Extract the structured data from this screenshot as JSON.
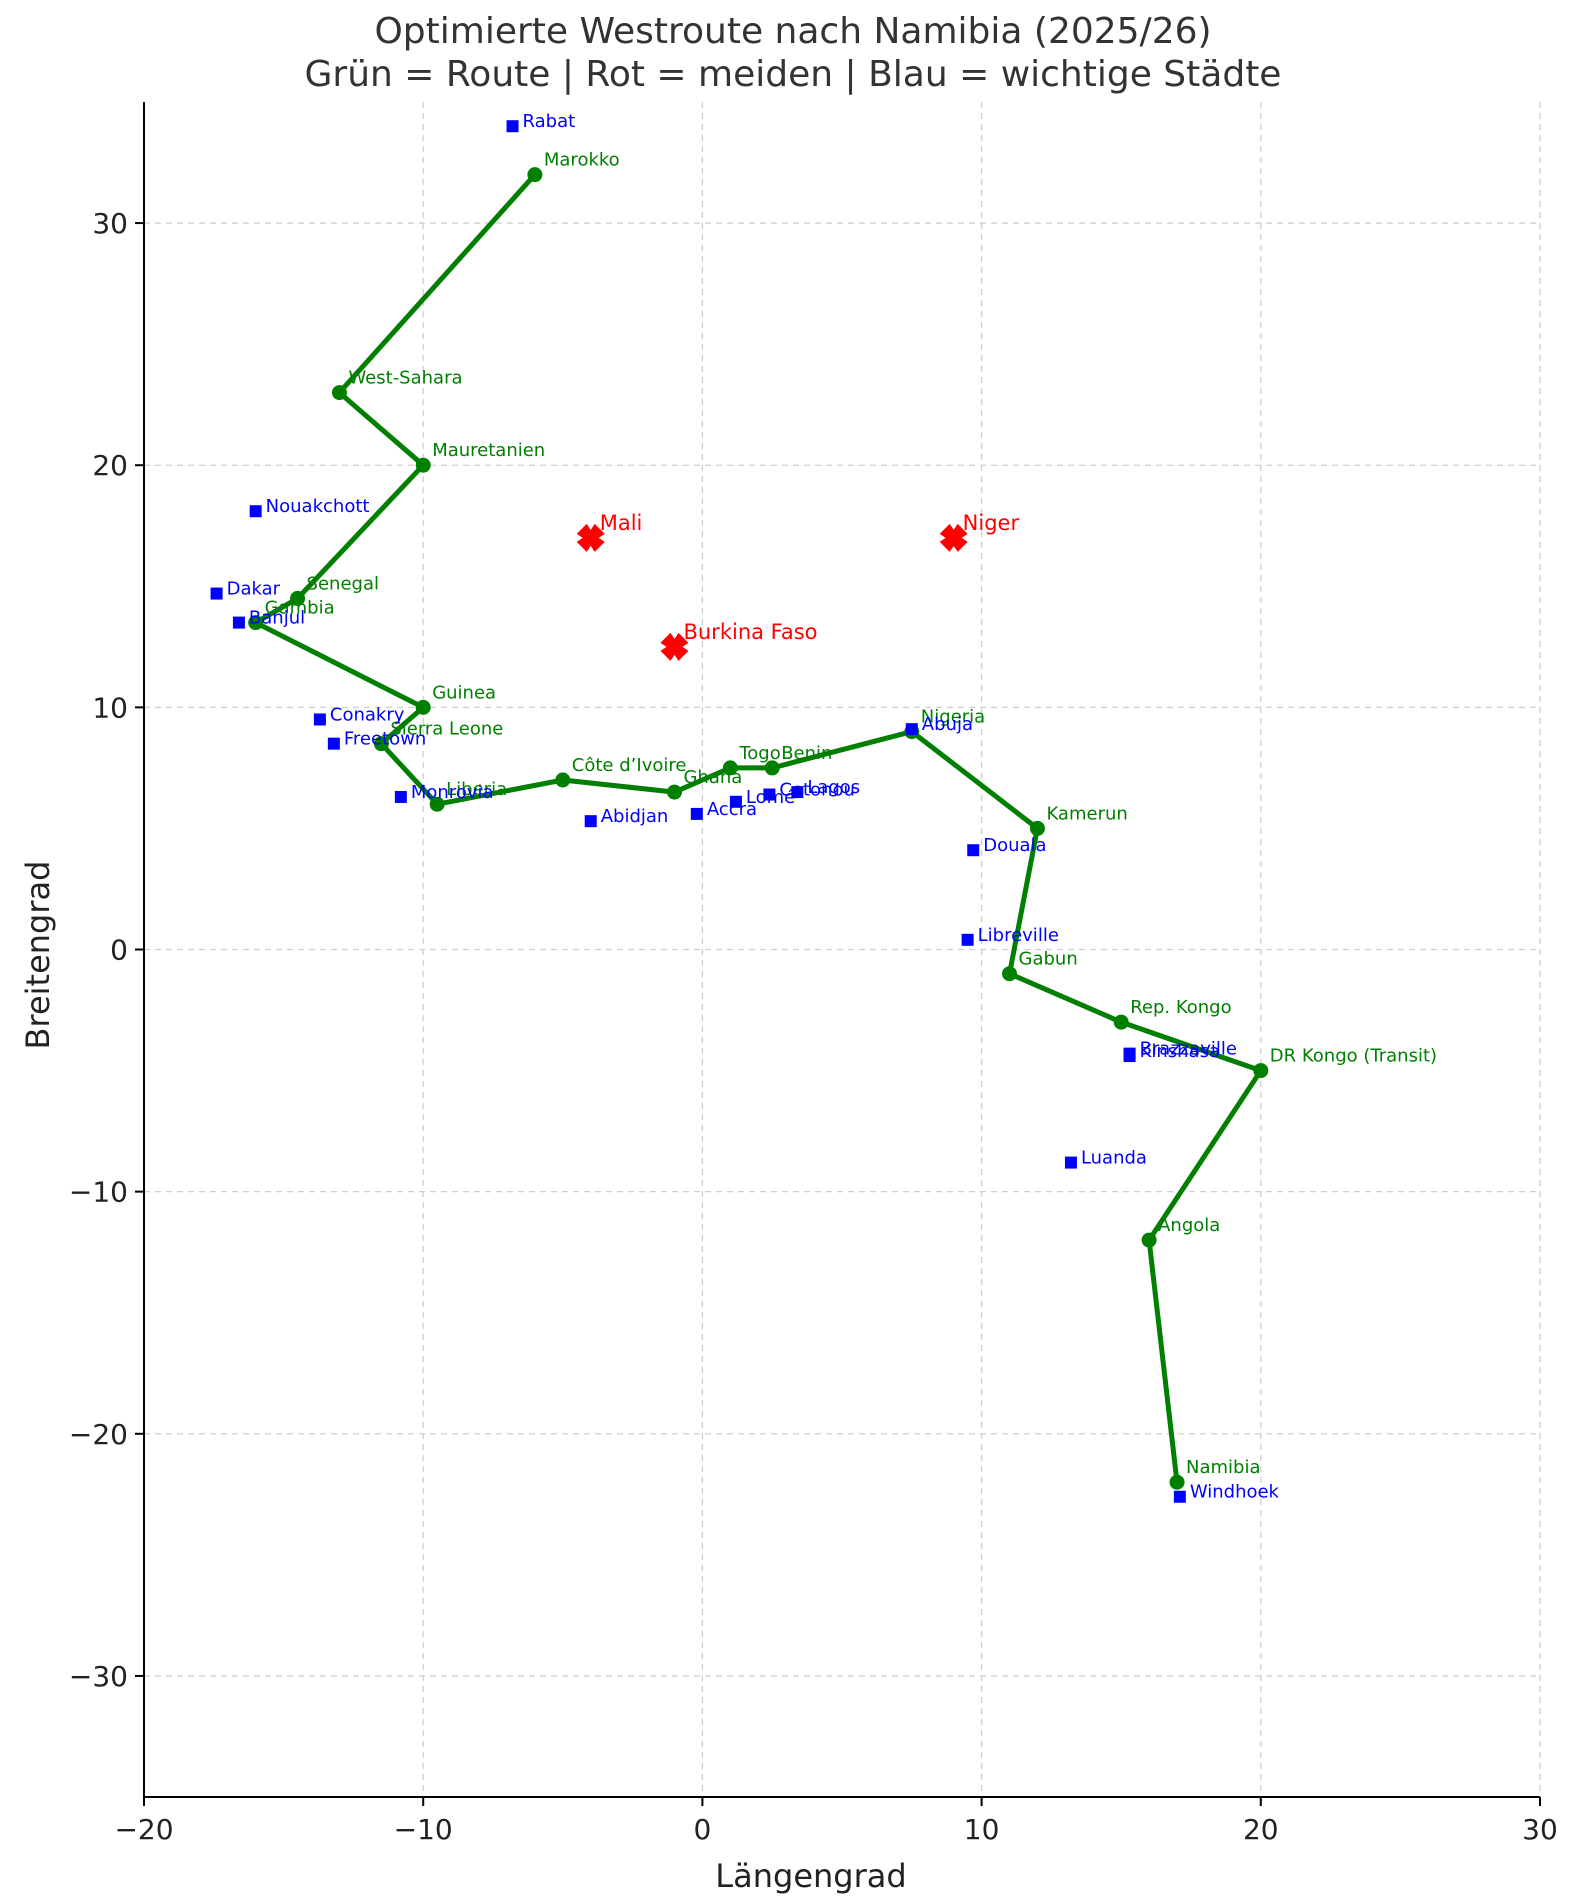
{
  "chart_data": {
    "type": "scatter",
    "title": "Optimierte Westroute nach Namibia (2025/26)",
    "subtitle": "Grün = Route | Rot = meiden | Blau = wichtige Städte",
    "xlabel": "Längengrad",
    "ylabel": "Breitengrad",
    "xlim": [
      -20,
      30
    ],
    "ylim": [
      -35,
      35
    ],
    "xticks": [
      -20,
      -10,
      0,
      10,
      20,
      30
    ],
    "yticks": [
      -30,
      -20,
      -10,
      0,
      10,
      20,
      30
    ],
    "xtick_labels": [
      "−20",
      "−10",
      "0",
      "10",
      "20",
      "30"
    ],
    "ytick_labels": [
      "−30",
      "−20",
      "−10",
      "0",
      "10",
      "20",
      "30"
    ],
    "grid": true,
    "colors": {
      "route": "#008000",
      "avoid": "#ff0000",
      "cities": "#0000ff"
    },
    "route": [
      {
        "name": "Marokko",
        "x": -6,
        "y": 32
      },
      {
        "name": "West-Sahara",
        "x": -13,
        "y": 23
      },
      {
        "name": "Mauretanien",
        "x": -10,
        "y": 20
      },
      {
        "name": "Senegal",
        "x": -14.5,
        "y": 14.5
      },
      {
        "name": "Gambia",
        "x": -16,
        "y": 13.5
      },
      {
        "name": "Guinea",
        "x": -10,
        "y": 10
      },
      {
        "name": "Sierra Leone",
        "x": -11.5,
        "y": 8.5
      },
      {
        "name": "Liberia",
        "x": -9.5,
        "y": 6
      },
      {
        "name": "Côte d’Ivoire",
        "x": -5,
        "y": 7
      },
      {
        "name": "Ghana",
        "x": -1,
        "y": 6.5
      },
      {
        "name": "Togo",
        "x": 1,
        "y": 7.5
      },
      {
        "name": "Benin",
        "x": 2.5,
        "y": 7.5
      },
      {
        "name": "Nigeria",
        "x": 7.5,
        "y": 9
      },
      {
        "name": "Kamerun",
        "x": 12,
        "y": 5
      },
      {
        "name": "Gabun",
        "x": 11,
        "y": -1
      },
      {
        "name": "Rep. Kongo",
        "x": 15,
        "y": -3
      },
      {
        "name": "DR Kongo (Transit)",
        "x": 20,
        "y": -5
      },
      {
        "name": "Angola",
        "x": 16,
        "y": -12
      },
      {
        "name": "Namibia",
        "x": 17,
        "y": -22
      }
    ],
    "avoid": [
      {
        "name": "Mali",
        "x": -4,
        "y": 17
      },
      {
        "name": "Niger",
        "x": 9,
        "y": 17
      },
      {
        "name": "Burkina Faso",
        "x": -1,
        "y": 12.5
      }
    ],
    "cities": [
      {
        "name": "Rabat",
        "x": -6.8,
        "y": 34.0
      },
      {
        "name": "Nouakchott",
        "x": -16.0,
        "y": 18.1
      },
      {
        "name": "Dakar",
        "x": -17.4,
        "y": 14.7
      },
      {
        "name": "Banjul",
        "x": -16.6,
        "y": 13.5
      },
      {
        "name": "Conakry",
        "x": -13.7,
        "y": 9.5
      },
      {
        "name": "Freetown",
        "x": -13.2,
        "y": 8.5
      },
      {
        "name": "Monrovia",
        "x": -10.8,
        "y": 6.3
      },
      {
        "name": "Abidjan",
        "x": -4.0,
        "y": 5.3
      },
      {
        "name": "Accra",
        "x": -0.2,
        "y": 5.6
      },
      {
        "name": "Lomé",
        "x": 1.2,
        "y": 6.1
      },
      {
        "name": "Cotonou",
        "x": 2.4,
        "y": 6.4
      },
      {
        "name": "Lagos",
        "x": 3.4,
        "y": 6.5
      },
      {
        "name": "Abuja",
        "x": 7.5,
        "y": 9.1
      },
      {
        "name": "Douala",
        "x": 9.7,
        "y": 4.1
      },
      {
        "name": "Libreville",
        "x": 9.5,
        "y": 0.4
      },
      {
        "name": "Brazzaville",
        "x": 15.3,
        "y": -4.3
      },
      {
        "name": "Kinshasa",
        "x": 15.3,
        "y": -4.4
      },
      {
        "name": "Luanda",
        "x": 13.2,
        "y": -8.8
      },
      {
        "name": "Windhoek",
        "x": 17.1,
        "y": -22.6
      }
    ]
  }
}
